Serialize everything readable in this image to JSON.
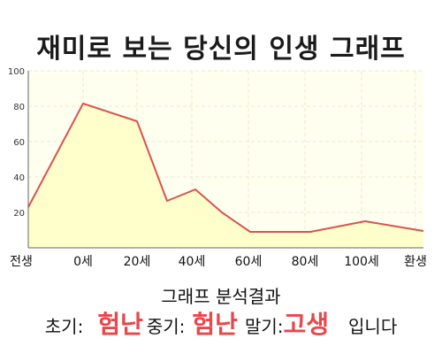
{
  "header": {
    "title": "재미로 보는 당신의 인생 그래프"
  },
  "colors": {
    "accent": "#e8474a",
    "line": "#d9534f",
    "fill": "#ffffcc",
    "plot_bg": "#fffff0"
  },
  "chart_data": {
    "type": "area",
    "title": "",
    "xlabel": "",
    "ylabel": "",
    "x_ticks": [
      "전생",
      "0세",
      "20세",
      "40세",
      "60세",
      "80세",
      "100세",
      "환생"
    ],
    "y_ticks": [
      "100",
      "80",
      "60",
      "40",
      "20"
    ],
    "ylim": [
      0,
      100
    ],
    "grid": true,
    "series": [
      {
        "values": [
          23,
          81.5,
          71.5,
          26.5,
          33,
          20,
          9,
          9,
          15,
          9.5
        ]
      }
    ]
  },
  "analysis": {
    "heading": "그래프 분석결과",
    "early_label": "초기:",
    "early_value": "험난",
    "mid_label": "중기:",
    "mid_value": "험난",
    "late_label": "말기:",
    "late_value": "고생",
    "suffix": "입니다"
  }
}
